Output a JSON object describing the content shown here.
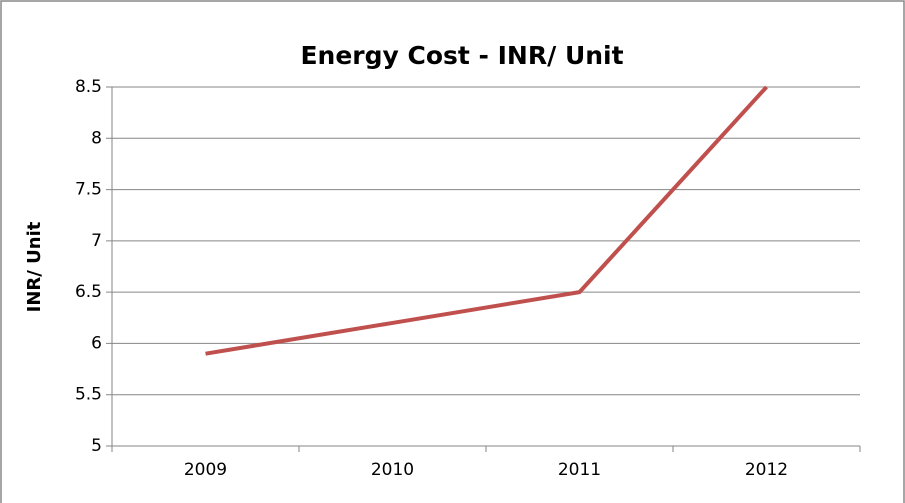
{
  "chart_data": {
    "type": "line",
    "title": "Energy Cost - INR/ Unit",
    "y_label": "INR/ Unit",
    "categories": [
      "2009",
      "2010",
      "2011",
      "2012"
    ],
    "series": [
      {
        "name": "INR/ Unit",
        "color": "#c0504d",
        "values": [
          5.9,
          6.2,
          6.5,
          8.5
        ]
      }
    ],
    "ylim": [
      5,
      8.5
    ],
    "yticks": [
      5,
      5.5,
      6,
      6.5,
      7,
      7.5,
      8,
      8.5
    ],
    "grid": true,
    "legend": false
  }
}
